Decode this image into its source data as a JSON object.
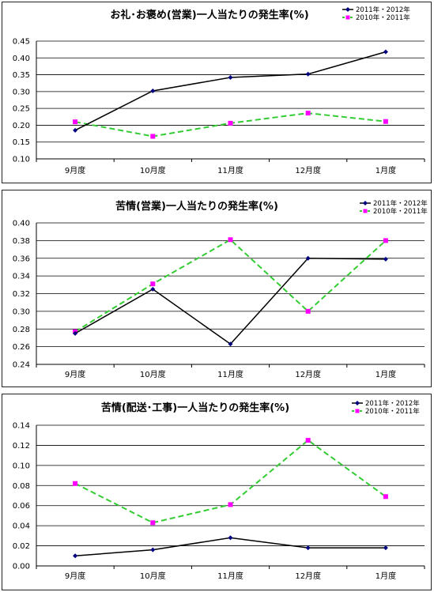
{
  "chart_data": [
    {
      "type": "line",
      "title": "お礼･お褒め(営業)一人当たりの発生率(%)",
      "categories": [
        "9月度",
        "10月度",
        "11月度",
        "12月度",
        "1月度"
      ],
      "ylim": [
        0.1,
        0.45
      ],
      "yticks": [
        "0.10",
        "0.15",
        "0.20",
        "0.25",
        "0.30",
        "0.35",
        "0.40",
        "0.45"
      ],
      "ytick_values": [
        0.1,
        0.15,
        0.2,
        0.25,
        0.3,
        0.35,
        0.4,
        0.45
      ],
      "grid": true,
      "legend_position": "top-right",
      "series": [
        {
          "name": "2011年・2012年",
          "values": [
            0.185,
            0.302,
            0.342,
            0.352,
            0.418
          ],
          "color": "#000000",
          "marker_color": "#000080",
          "dashed": false
        },
        {
          "name": "2010年・2011年",
          "values": [
            0.21,
            0.167,
            0.206,
            0.236,
            0.211
          ],
          "color": "#33cc33",
          "marker_color": "#ff00ff",
          "dashed": true
        }
      ]
    },
    {
      "type": "line",
      "title": "苦情(営業)一人当たりの発生率(%)",
      "categories": [
        "9月度",
        "10月度",
        "11月度",
        "12月度",
        "1月度"
      ],
      "ylim": [
        0.24,
        0.4
      ],
      "yticks": [
        "0.24",
        "0.26",
        "0.28",
        "0.30",
        "0.32",
        "0.34",
        "0.36",
        "0.38",
        "0.40"
      ],
      "ytick_values": [
        0.24,
        0.26,
        0.28,
        0.3,
        0.32,
        0.34,
        0.36,
        0.38,
        0.4
      ],
      "grid": true,
      "legend_position": "top-right",
      "series": [
        {
          "name": "2011年・2012年",
          "values": [
            0.275,
            0.325,
            0.263,
            0.36,
            0.359
          ],
          "color": "#000000",
          "marker_color": "#000080",
          "dashed": false
        },
        {
          "name": "2010年・2011年",
          "values": [
            0.277,
            0.331,
            0.381,
            0.3,
            0.38
          ],
          "color": "#33cc33",
          "marker_color": "#ff00ff",
          "dashed": true
        }
      ]
    },
    {
      "type": "line",
      "title": "苦情(配送･工事)一人当たりの発生率(%)",
      "categories": [
        "9月度",
        "10月度",
        "11月度",
        "12月度",
        "1月度"
      ],
      "ylim": [
        0.0,
        0.14
      ],
      "yticks": [
        "0.00",
        "0.02",
        "0.04",
        "0.06",
        "0.08",
        "0.10",
        "0.12",
        "0.14"
      ],
      "ytick_values": [
        0.0,
        0.02,
        0.04,
        0.06,
        0.08,
        0.1,
        0.12,
        0.14
      ],
      "grid": true,
      "legend_position": "top-right",
      "series": [
        {
          "name": "2011年・2012年",
          "values": [
            0.01,
            0.016,
            0.028,
            0.018,
            0.018
          ],
          "color": "#000000",
          "marker_color": "#000080",
          "dashed": false
        },
        {
          "name": "2010年・2011年",
          "values": [
            0.082,
            0.043,
            0.061,
            0.125,
            0.069
          ],
          "color": "#33cc33",
          "marker_color": "#ff00ff",
          "dashed": true
        }
      ]
    }
  ]
}
